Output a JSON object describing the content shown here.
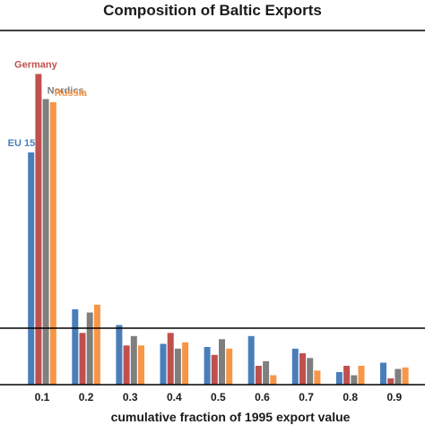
{
  "chart_data": {
    "type": "bar",
    "title": "Composition of Baltic Exports",
    "xlabel": "cumulative fraction of 1995 export value",
    "ylabel": "",
    "categories": [
      "0.1",
      "0.2",
      "0.3",
      "0.4",
      "0.5",
      "0.6",
      "0.7",
      "0.8",
      "0.9"
    ],
    "ylim": [
      0,
      1
    ],
    "reference_line": 0.18,
    "grid": false,
    "legend": "labels above first group",
    "series": [
      {
        "name": "EU 15",
        "color": "#4a7ebb",
        "values": [
          0.74,
          0.24,
          0.19,
          0.13,
          0.12,
          0.155,
          0.115,
          0.04,
          0.07
        ]
      },
      {
        "name": "Germany",
        "color": "#c0504d",
        "values": [
          0.99,
          0.165,
          0.125,
          0.165,
          0.095,
          0.06,
          0.1,
          0.06,
          0.02
        ]
      },
      {
        "name": "Nordics",
        "color": "#7f7f7f",
        "values": [
          0.91,
          0.23,
          0.155,
          0.115,
          0.145,
          0.075,
          0.085,
          0.03,
          0.05
        ]
      },
      {
        "name": "Russia",
        "color": "#f79646",
        "values": [
          0.9,
          0.255,
          0.125,
          0.135,
          0.115,
          0.03,
          0.045,
          0.06,
          0.055
        ]
      }
    ]
  }
}
